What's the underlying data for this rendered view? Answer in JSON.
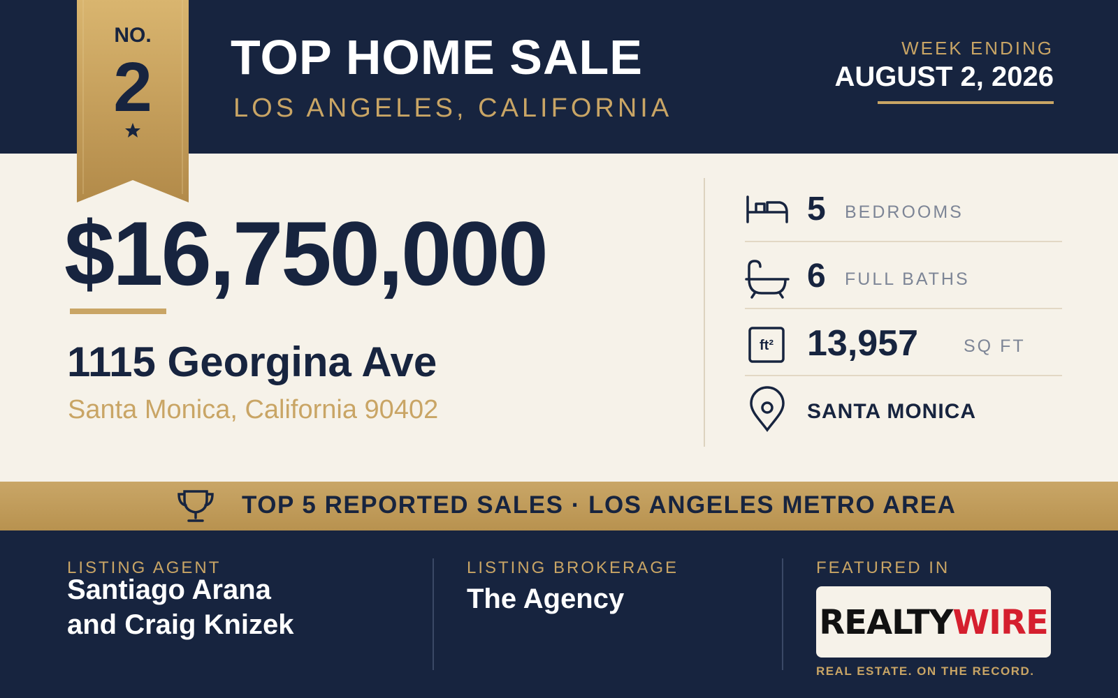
{
  "ribbon": {
    "prefix": "NO.",
    "rank": "2"
  },
  "header": {
    "title": "TOP HOME SALE",
    "location": "LOS ANGELES, CALIFORNIA",
    "week_label": "WEEK ENDING",
    "week_date": "AUGUST 2, 2026"
  },
  "sale": {
    "price": "$16,750,000",
    "address": "1115 Georgina Ave",
    "city": "Santa Monica, California 90402"
  },
  "stats": [
    {
      "value": "5",
      "label": "BEDROOMS"
    },
    {
      "value": "6",
      "label": "FULL BATHS"
    },
    {
      "icon": "ft²",
      "value": "13,957",
      "label": "SQ FT"
    },
    {
      "value": "SANTA MONICA"
    }
  ],
  "banner": "TOP 5 REPORTED SALES · LOS ANGELES METRO AREA",
  "footer": {
    "agent_label": "LISTING AGENT",
    "agent_line1": "Santiago Arana",
    "agent_line2": "and Craig Knizek",
    "brokerage_label": "LISTING BROKERAGE",
    "brokerage": "The Agency",
    "featured_label": "FEATURED IN",
    "logo_part1": "REALTY",
    "logo_part2": "WIRE",
    "tagline": "REAL ESTATE. ON THE RECORD."
  }
}
